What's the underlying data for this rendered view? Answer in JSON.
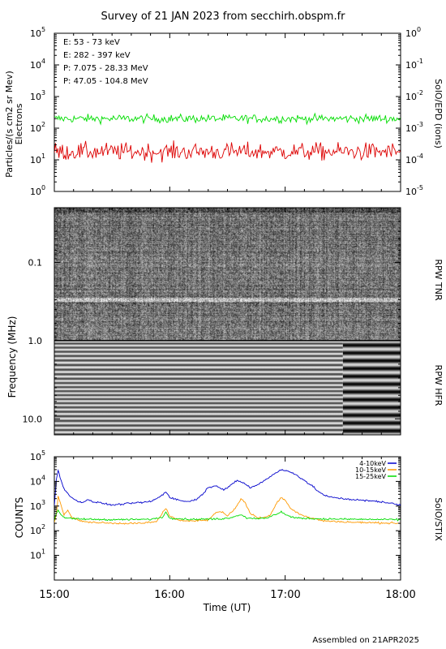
{
  "title": "Survey of 21 JAN 2023 from secchirh.obspm.fr",
  "footer": "Assembled on 21APR2025",
  "colors": {
    "green": "#00dd00",
    "red": "#dd0000",
    "black": "#000000",
    "blue": "#0000cc",
    "orange": "#ff9900"
  },
  "chart_data": [
    {
      "type": "line",
      "id": "epd",
      "ylabel_left": [
        "Particles/(s cm2 sr Mev)",
        "Electrons"
      ],
      "ylabel_right": "SolO/EPD (ions)",
      "ylim_left": [
        1,
        100000
      ],
      "ylim_right": [
        1e-05,
        1
      ],
      "log_y": true,
      "left_ticks": [
        {
          "base": "10",
          "exp": "0"
        },
        {
          "base": "10",
          "exp": "1"
        },
        {
          "base": "10",
          "exp": "2"
        },
        {
          "base": "10",
          "exp": "3"
        },
        {
          "base": "10",
          "exp": "4"
        },
        {
          "base": "10",
          "exp": "5"
        }
      ],
      "right_ticks": [
        {
          "base": "10",
          "exp": "-5"
        },
        {
          "base": "10",
          "exp": "-4"
        },
        {
          "base": "10",
          "exp": "-3"
        },
        {
          "base": "10",
          "exp": "-2"
        },
        {
          "base": "10",
          "exp": "-1"
        },
        {
          "base": "10",
          "exp": "0"
        }
      ],
      "legend": [
        {
          "text": "E: 53 - 73 keV",
          "color": "#00dd00"
        },
        {
          "text": "E: 282 - 397 keV",
          "color": "#dd0000"
        },
        {
          "text": "P: 7.075 - 28.33 MeV",
          "color": "#000000"
        },
        {
          "text": "P: 47.05 - 104.8 MeV",
          "color": "#0000cc"
        }
      ],
      "legend_position": "top-left",
      "series": [
        {
          "color": "#00dd00",
          "level": 200,
          "scatter_decades": 0.13,
          "samples": 300
        },
        {
          "color": "#dd0000",
          "level": 18,
          "scatter_decades": 0.25,
          "samples": 300
        }
      ]
    },
    {
      "type": "heatmap",
      "id": "rpw",
      "ylabel": "Frequency (MHz)",
      "right_label_top": "RPW TNR",
      "right_label_bottom": "RPW HFR",
      "y_ticks": [
        "0.1",
        "1.0",
        "10.0"
      ],
      "log_y": true,
      "ylim": [
        0.02,
        16
      ],
      "receiver_boundary_mhz": 1.0,
      "hfr_mode_change_time": "17:30"
    },
    {
      "type": "line",
      "id": "stix",
      "ylabel": "COUNTS",
      "ylabel_right": "SolO/STIX",
      "log_y": true,
      "ylim": [
        1,
        100000
      ],
      "y_ticks": [
        {
          "base": "10",
          "exp": "1"
        },
        {
          "base": "10",
          "exp": "2"
        },
        {
          "base": "10",
          "exp": "3"
        },
        {
          "base": "10",
          "exp": "4"
        },
        {
          "base": "10",
          "exp": "5"
        }
      ],
      "legend_position": "top-right",
      "series": [
        {
          "name": "4-10keV",
          "color": "#0000cc",
          "points": [
            [
              "15:00",
              1000
            ],
            [
              "15:01",
              12000
            ],
            [
              "15:02",
              28000
            ],
            [
              "15:03",
              15000
            ],
            [
              "15:05",
              5000
            ],
            [
              "15:08",
              2500
            ],
            [
              "15:12",
              1600
            ],
            [
              "15:15",
              1400
            ],
            [
              "15:18",
              1900
            ],
            [
              "15:20",
              1500
            ],
            [
              "15:25",
              1300
            ],
            [
              "15:30",
              1100
            ],
            [
              "15:40",
              1300
            ],
            [
              "15:50",
              1500
            ],
            [
              "15:55",
              2400
            ],
            [
              "15:58",
              3800
            ],
            [
              "16:00",
              2300
            ],
            [
              "16:05",
              1700
            ],
            [
              "16:10",
              1500
            ],
            [
              "16:15",
              2100
            ],
            [
              "16:20",
              5500
            ],
            [
              "16:24",
              7000
            ],
            [
              "16:28",
              4500
            ],
            [
              "16:32",
              7000
            ],
            [
              "16:35",
              11000
            ],
            [
              "16:38",
              9000
            ],
            [
              "16:42",
              5500
            ],
            [
              "16:46",
              7500
            ],
            [
              "16:50",
              12000
            ],
            [
              "16:55",
              22000
            ],
            [
              "16:58",
              30000
            ],
            [
              "17:02",
              25000
            ],
            [
              "17:06",
              18000
            ],
            [
              "17:10",
              11000
            ],
            [
              "17:14",
              6500
            ],
            [
              "17:18",
              3500
            ],
            [
              "17:22",
              2400
            ],
            [
              "17:30",
              2000
            ],
            [
              "17:40",
              1700
            ],
            [
              "17:50",
              1500
            ],
            [
              "18:00",
              1100
            ]
          ]
        },
        {
          "name": "10-15keV",
          "color": "#ff9900",
          "points": [
            [
              "15:00",
              200
            ],
            [
              "15:01",
              450
            ],
            [
              "15:02",
              2500
            ],
            [
              "15:03",
              1500
            ],
            [
              "15:05",
              450
            ],
            [
              "15:07",
              700
            ],
            [
              "15:09",
              350
            ],
            [
              "15:15",
              230
            ],
            [
              "15:30",
              200
            ],
            [
              "15:45",
              200
            ],
            [
              "15:53",
              230
            ],
            [
              "15:56",
              500
            ],
            [
              "15:58",
              800
            ],
            [
              "16:00",
              400
            ],
            [
              "16:05",
              250
            ],
            [
              "16:20",
              270
            ],
            [
              "16:24",
              550
            ],
            [
              "16:27",
              600
            ],
            [
              "16:30",
              400
            ],
            [
              "16:34",
              800
            ],
            [
              "16:37",
              2000
            ],
            [
              "16:39",
              1400
            ],
            [
              "16:42",
              500
            ],
            [
              "16:46",
              320
            ],
            [
              "16:52",
              400
            ],
            [
              "16:56",
              1500
            ],
            [
              "16:58",
              2200
            ],
            [
              "17:00",
              1700
            ],
            [
              "17:03",
              800
            ],
            [
              "17:07",
              500
            ],
            [
              "17:12",
              350
            ],
            [
              "17:20",
              250
            ],
            [
              "17:35",
              220
            ],
            [
              "18:00",
              200
            ]
          ]
        },
        {
          "name": "15-25keV",
          "color": "#00dd00",
          "points": [
            [
              "15:00",
              280
            ],
            [
              "15:01",
              500
            ],
            [
              "15:02",
              700
            ],
            [
              "15:03",
              500
            ],
            [
              "15:05",
              350
            ],
            [
              "15:10",
              300
            ],
            [
              "15:30",
              280
            ],
            [
              "15:50",
              290
            ],
            [
              "15:56",
              350
            ],
            [
              "15:58",
              550
            ],
            [
              "16:00",
              330
            ],
            [
              "16:10",
              290
            ],
            [
              "16:25",
              300
            ],
            [
              "16:30",
              320
            ],
            [
              "16:37",
              450
            ],
            [
              "16:40",
              330
            ],
            [
              "16:50",
              310
            ],
            [
              "16:56",
              500
            ],
            [
              "16:58",
              600
            ],
            [
              "17:00",
              450
            ],
            [
              "17:05",
              330
            ],
            [
              "17:20",
              300
            ],
            [
              "18:00",
              280
            ]
          ]
        }
      ]
    }
  ],
  "xaxis": {
    "label": "Time (UT)",
    "ticks": [
      "15:00",
      "16:00",
      "17:00",
      "18:00"
    ],
    "range": [
      "15:00",
      "18:00"
    ]
  }
}
